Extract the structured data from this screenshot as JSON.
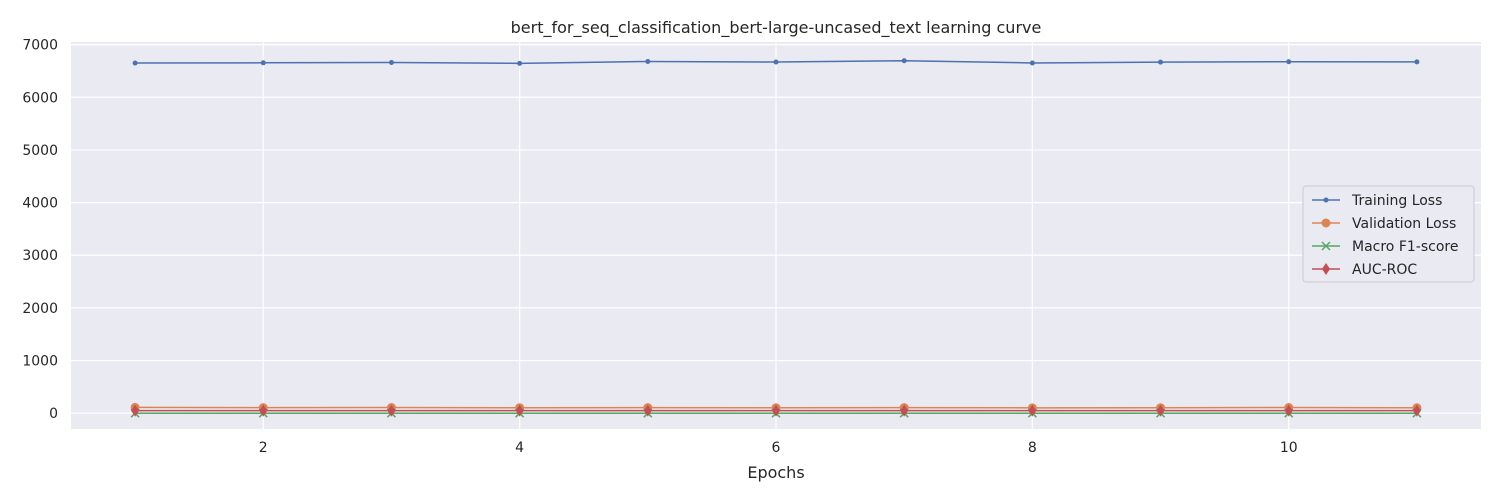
{
  "chart_data": {
    "type": "line",
    "title": "bert_for_seq_classification_bert-large-uncased_text learning curve",
    "xlabel": "Epochs",
    "ylabel": "",
    "x": [
      1,
      2,
      3,
      4,
      5,
      6,
      7,
      8,
      9,
      10,
      11
    ],
    "xlim": [
      0.5,
      11.5
    ],
    "ylim": [
      -300,
      7050
    ],
    "xticks": [
      2,
      4,
      6,
      8,
      10
    ],
    "yticks": [
      0,
      1000,
      2000,
      3000,
      4000,
      5000,
      6000,
      7000
    ],
    "grid": true,
    "legend_position": "center-right",
    "series": [
      {
        "name": "Training Loss",
        "color": "#4c72b0",
        "marker": "point",
        "values": [
          6650,
          6655,
          6660,
          6645,
          6680,
          6670,
          6695,
          6652,
          6668,
          6675,
          6672
        ]
      },
      {
        "name": "Validation Loss",
        "color": "#dd8452",
        "marker": "circle",
        "values": [
          110,
          105,
          108,
          104,
          106,
          103,
          107,
          102,
          104,
          108,
          103
        ]
      },
      {
        "name": "Macro F1-score",
        "color": "#55a868",
        "marker": "x",
        "values": [
          0.3,
          0.3,
          0.3,
          0.3,
          0.3,
          0.3,
          0.3,
          0.3,
          0.3,
          0.3,
          0.3
        ]
      },
      {
        "name": "AUC-ROC",
        "color": "#c44e52",
        "marker": "diamond",
        "values": [
          50,
          50,
          50,
          50,
          50,
          50,
          50,
          50,
          50,
          50,
          50
        ]
      }
    ],
    "colors": {
      "background": "#eaeaf2",
      "grid": "#ffffff"
    }
  }
}
